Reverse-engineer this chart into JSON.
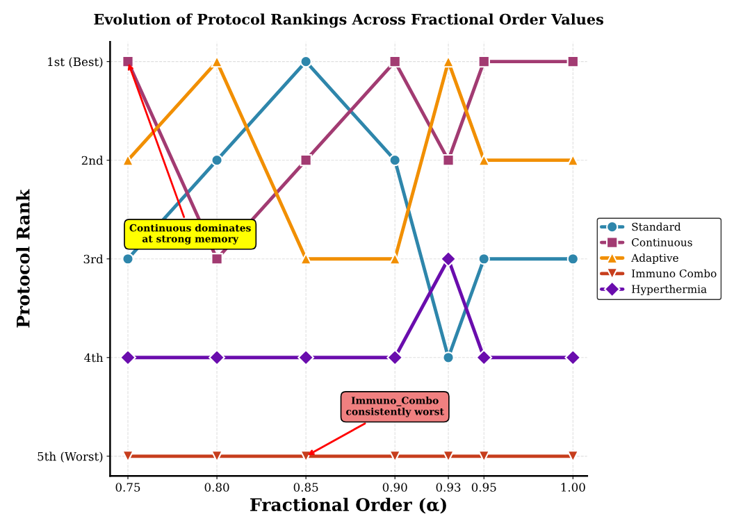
{
  "chart_data": {
    "type": "line",
    "title": "Evolution of Protocol Rankings Across Fractional Order Values",
    "xlabel": "Fractional Order (α)",
    "ylabel": "Protocol Rank",
    "x": [
      0.75,
      0.8,
      0.85,
      0.9,
      0.93,
      0.95,
      1.0
    ],
    "xlim": [
      0.74,
      1.008
    ],
    "xticks": [
      {
        "value": 0.75,
        "label": "0.75"
      },
      {
        "value": 0.8,
        "label": "0.80"
      },
      {
        "value": 0.85,
        "label": "0.85"
      },
      {
        "value": 0.9,
        "label": "0.90"
      },
      {
        "value": 0.93,
        "label": "0.93"
      },
      {
        "value": 0.95,
        "label": "0.95"
      },
      {
        "value": 1.0,
        "label": "1.00"
      }
    ],
    "ylim": [
      5.2,
      0.8
    ],
    "yticks": [
      {
        "value": 1,
        "label": "1st (Best)"
      },
      {
        "value": 2,
        "label": "2nd"
      },
      {
        "value": 3,
        "label": "3rd"
      },
      {
        "value": 4,
        "label": "4th"
      },
      {
        "value": 5,
        "label": "5th (Worst)"
      }
    ],
    "grid": true,
    "legend": "right",
    "line_style": "solid",
    "series": [
      {
        "name": "Standard",
        "color": "#2e86ab",
        "marker": "circle",
        "values": [
          3,
          2,
          1,
          2,
          4,
          3,
          3
        ]
      },
      {
        "name": "Continuous",
        "color": "#a23b72",
        "marker": "square",
        "values": [
          1,
          3,
          2,
          1,
          2,
          1,
          1
        ]
      },
      {
        "name": "Adaptive",
        "color": "#f18f01",
        "marker": "triangle",
        "values": [
          2,
          1,
          3,
          3,
          1,
          2,
          2
        ]
      },
      {
        "name": "Immuno Combo",
        "color": "#c73e1d",
        "marker": "triangle_down",
        "values": [
          5,
          5,
          5,
          5,
          5,
          5,
          5
        ]
      },
      {
        "name": "Hyperthermia",
        "color": "#6a0dad",
        "marker": "diamond",
        "values": [
          4,
          4,
          4,
          4,
          3,
          4,
          4
        ]
      }
    ],
    "annotations": [
      {
        "text": "Continuous dominates\nat strong memory",
        "x": 0.75,
        "y": 1
      },
      {
        "text": "Immuno_Combo\nconsistently worst",
        "x": 0.85,
        "y": 5
      }
    ]
  }
}
